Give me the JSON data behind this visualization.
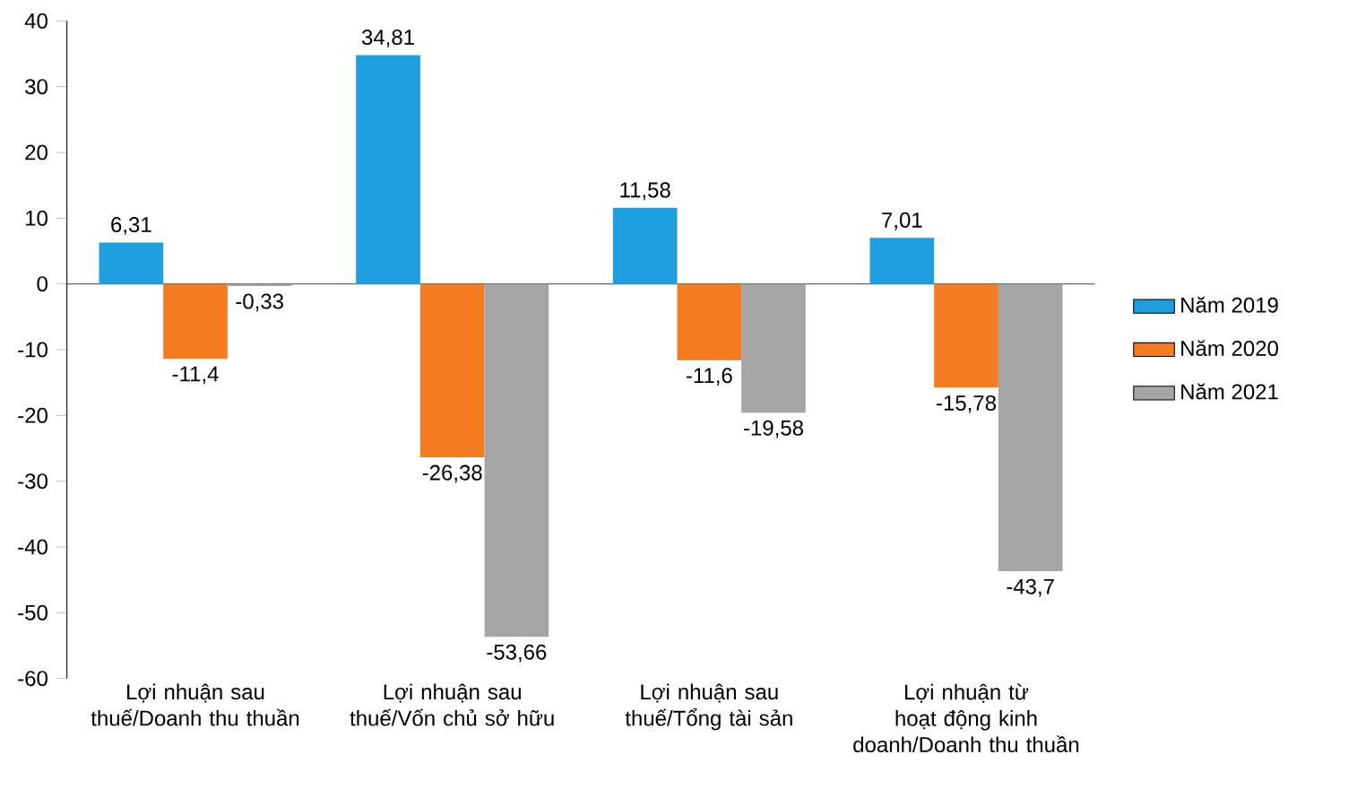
{
  "chart_data": {
    "type": "bar",
    "categories": [
      "Lợi nhuận sau thuế/Doanh thu thuần",
      "Lợi nhuận sau thuế/Vốn chủ sở hữu",
      "Lợi nhuận sau thuế/Tổng tài sản",
      "Lợi nhuận từ hoạt động kinh doanh/Doanh thu thuần"
    ],
    "series": [
      {
        "name": "Năm 2019",
        "color": "#1f9fdf",
        "values": [
          6.31,
          34.81,
          11.58,
          7.01
        ],
        "value_labels": [
          "6,31",
          "34,81",
          "11,58",
          "7,01"
        ]
      },
      {
        "name": "Năm 2020",
        "color": "#f47b20",
        "values": [
          -11.4,
          -26.38,
          -11.6,
          -15.78
        ],
        "value_labels": [
          "-11,4",
          "-26,38",
          "-11,6",
          "-15,78"
        ]
      },
      {
        "name": "Năm 2021",
        "color": "#a5a5a5",
        "values": [
          -0.33,
          -53.66,
          -19.58,
          -43.7
        ],
        "value_labels": [
          "-0,33",
          "-53,66",
          "-19,58",
          "-43,7"
        ]
      }
    ],
    "ylim": [
      -60,
      40
    ],
    "yticks": [
      -60,
      -50,
      -40,
      -30,
      -20,
      -10,
      0,
      10,
      20,
      30,
      40
    ],
    "legend": "right"
  }
}
